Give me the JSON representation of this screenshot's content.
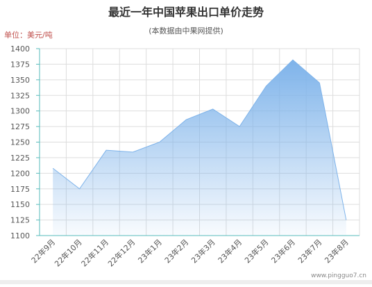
{
  "chart_data": {
    "type": "area",
    "title": "最近一年中国苹果出口单价走势",
    "subtitle": "(本数据由中果网提供)",
    "y_label": "单位：美元/吨",
    "watermark": "www.pingguo7.cn",
    "categories": [
      "22年9月",
      "22年10月",
      "22年11月",
      "22年12月",
      "23年1月",
      "23年2月",
      "23年3月",
      "23年4月",
      "23年5月",
      "23年6月",
      "23年7月",
      "23年8月"
    ],
    "values": [
      1208,
      1175,
      1237,
      1234,
      1250,
      1286,
      1303,
      1275,
      1340,
      1382,
      1345,
      1125
    ],
    "color": "#7eb3ea",
    "ylim": [
      1100,
      1400
    ],
    "yticks": [
      1100,
      1125,
      1150,
      1175,
      1200,
      1225,
      1250,
      1275,
      1300,
      1325,
      1350,
      1375,
      1400
    ],
    "grid": true
  }
}
